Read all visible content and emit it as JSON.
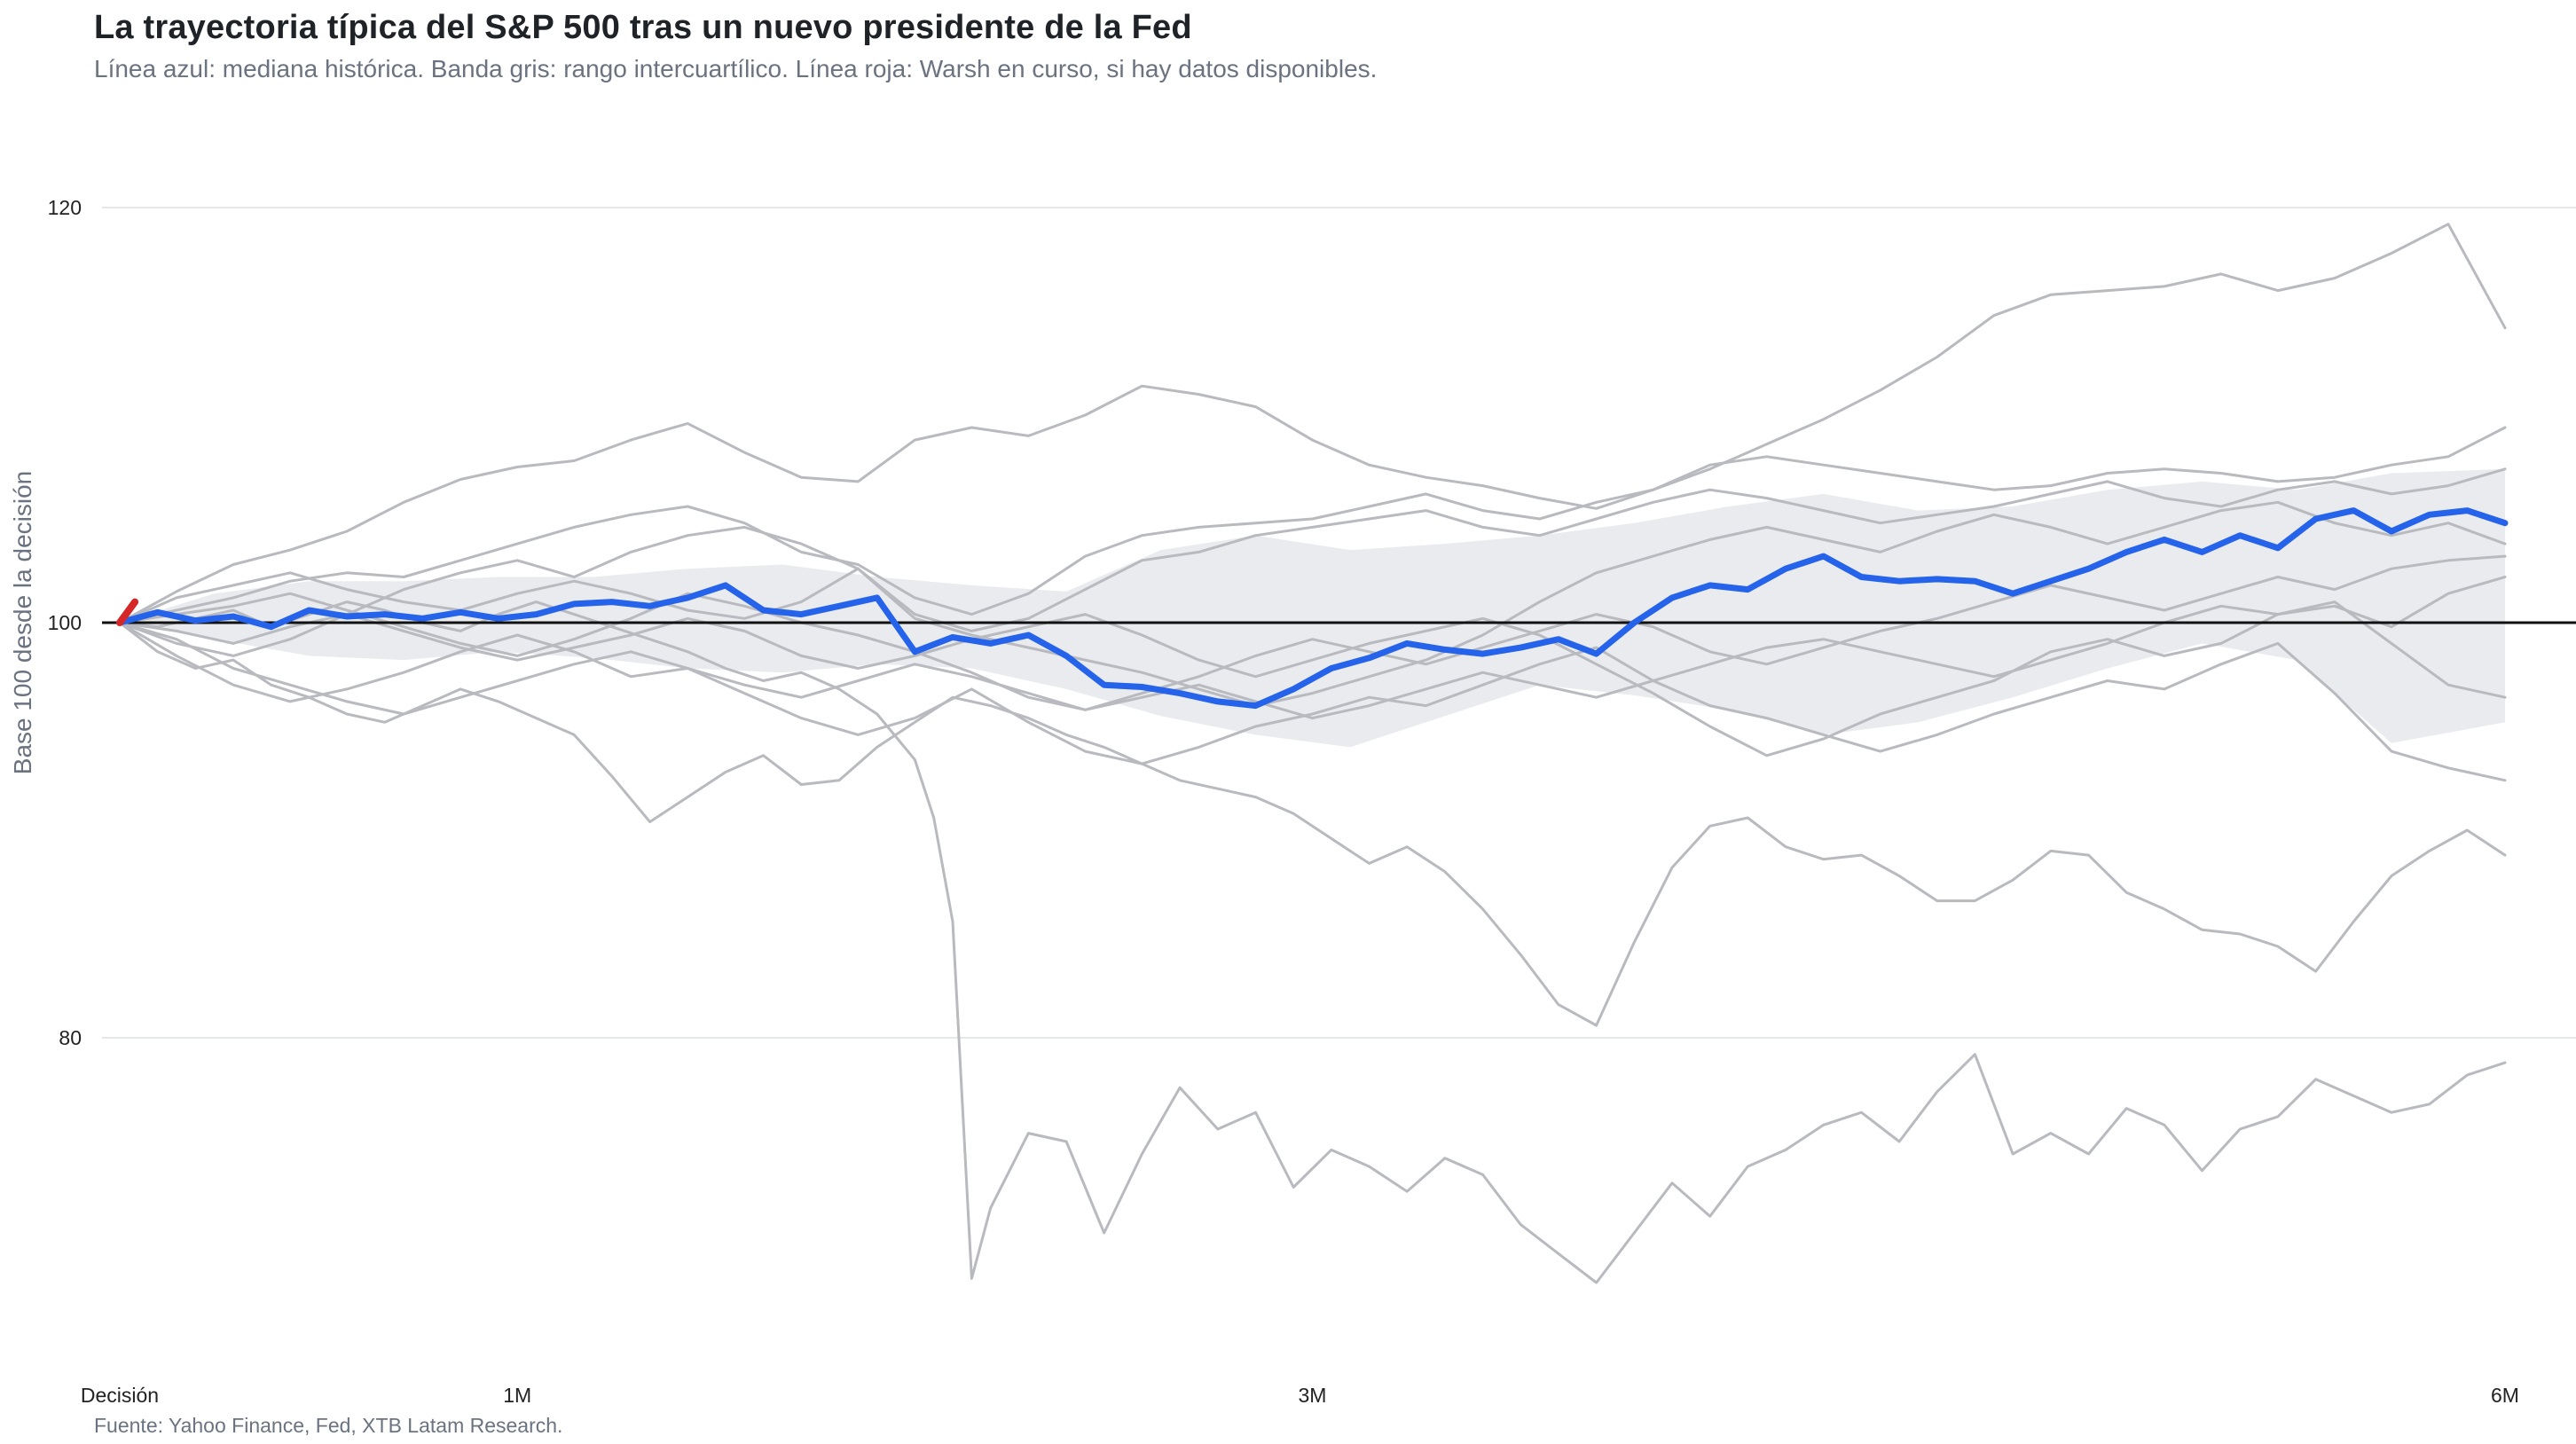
{
  "header": {
    "title": "La trayectoria típica del S&P 500 tras un nuevo presidente de la Fed",
    "subtitle": "Línea azul: mediana histórica. Banda gris: rango intercuartílico. Línea roja: Warsh en curso, si hay datos disponibles."
  },
  "footer": {
    "source": "Fuente: Yahoo Finance, Fed, XTB Latam Research."
  },
  "chart_data": {
    "type": "line",
    "title": "La trayectoria típica del S&P 500 tras un nuevo presidente de la Fed",
    "ylabel": "Base 100 desde la decisión",
    "xlabel": "",
    "xlim": [
      0,
      126
    ],
    "ylim": [
      67,
      122
    ],
    "baseline": 100,
    "grid": true,
    "legend": "none",
    "x_ticks": [
      {
        "value": 0,
        "label": "Decisión"
      },
      {
        "value": 21,
        "label": "1M"
      },
      {
        "value": 63,
        "label": "3M"
      },
      {
        "value": 126,
        "label": "6M"
      }
    ],
    "y_ticks": [
      {
        "value": 80,
        "label": "80"
      },
      {
        "value": 100,
        "label": "100"
      },
      {
        "value": 120,
        "label": "120"
      }
    ],
    "colors": {
      "median": "#2563eb",
      "band": "#e5e7eb",
      "historical": "#b8babf",
      "current": "#d62728",
      "baseline": "#111111",
      "grid": "#e5e7eb"
    },
    "band_iqr": {
      "x": [
        0,
        5,
        10,
        15,
        20,
        25,
        30,
        35,
        40,
        45,
        50,
        55,
        60,
        65,
        70,
        75,
        80,
        85,
        90,
        95,
        100,
        105,
        110,
        115,
        120,
        126
      ],
      "lower": [
        100,
        99.2,
        98.4,
        98.2,
        98.6,
        98.3,
        97.8,
        97.6,
        98.0,
        97.8,
        96.8,
        95.5,
        94.6,
        94.0,
        95.5,
        97.0,
        96.5,
        95.8,
        94.6,
        95.2,
        96.4,
        97.8,
        99.0,
        98.2,
        94.2,
        95.2
      ],
      "upper": [
        100,
        101.4,
        102.0,
        102.0,
        102.2,
        102.2,
        102.6,
        102.8,
        102.2,
        101.8,
        101.5,
        103.5,
        104.2,
        103.5,
        103.8,
        104.2,
        104.8,
        105.6,
        106.2,
        105.4,
        105.6,
        106.4,
        106.8,
        106.4,
        107.2,
        107.4
      ]
    },
    "median": {
      "x": [
        0,
        2,
        4,
        6,
        8,
        10,
        12,
        14,
        16,
        18,
        20,
        22,
        24,
        26,
        28,
        30,
        32,
        34,
        36,
        38,
        40,
        42,
        44,
        46,
        48,
        50,
        52,
        54,
        56,
        58,
        60,
        62,
        64,
        66,
        68,
        70,
        72,
        74,
        76,
        78,
        80,
        82,
        84,
        86,
        88,
        90,
        92,
        94,
        96,
        98,
        100,
        102,
        104,
        106,
        108,
        110,
        112,
        114,
        116,
        118,
        120,
        122,
        124,
        126
      ],
      "y": [
        100,
        100.5,
        100.1,
        100.3,
        99.8,
        100.6,
        100.3,
        100.4,
        100.2,
        100.5,
        100.2,
        100.4,
        100.9,
        101.0,
        100.8,
        101.2,
        101.8,
        100.6,
        100.4,
        100.8,
        101.2,
        98.6,
        99.3,
        99.0,
        99.4,
        98.4,
        97.0,
        96.9,
        96.6,
        96.2,
        96.0,
        96.8,
        97.8,
        98.3,
        99.0,
        98.7,
        98.5,
        98.8,
        99.2,
        98.5,
        100.0,
        101.2,
        101.8,
        101.6,
        102.6,
        103.2,
        102.2,
        102.0,
        102.1,
        102.0,
        101.4,
        102.0,
        102.6,
        103.4,
        104.0,
        103.4,
        104.2,
        103.6,
        105.0,
        105.4,
        104.4,
        105.2,
        105.4,
        104.8
      ]
    },
    "series": [
      {
        "x": [
          0,
          3,
          6,
          9,
          12,
          15,
          18,
          21,
          24,
          27,
          30,
          33,
          36,
          39,
          42,
          45,
          48,
          51,
          54,
          57,
          60,
          63,
          66,
          69,
          72,
          75,
          78,
          81,
          84,
          87,
          90,
          93,
          96,
          99,
          102,
          105,
          108,
          111,
          114,
          117,
          120,
          123,
          126
        ],
        "y": [
          100,
          101.5,
          102.8,
          103.5,
          104.4,
          105.8,
          106.9,
          107.5,
          107.8,
          108.8,
          109.6,
          108.2,
          107.0,
          106.8,
          108.8,
          109.4,
          109.0,
          110.0,
          111.4,
          111.0,
          110.4,
          108.8,
          107.6,
          107.0,
          106.6,
          106.0,
          105.5,
          106.4,
          107.4,
          108.6,
          109.8,
          111.2,
          112.8,
          114.8,
          115.8,
          116.0,
          116.2,
          116.8,
          116.0,
          116.6,
          117.8,
          119.2,
          114.2
        ]
      },
      {
        "x": [
          0,
          3,
          6,
          9,
          12,
          15,
          18,
          21,
          24,
          27,
          30,
          33,
          36,
          39,
          42,
          45,
          48,
          51,
          54,
          57,
          60,
          63,
          66,
          69,
          72,
          75,
          78,
          81,
          84,
          87,
          90,
          93,
          96,
          99,
          102,
          105,
          108,
          111,
          114,
          117,
          120,
          123,
          126
        ],
        "y": [
          100,
          100.6,
          101.2,
          102.0,
          102.4,
          102.2,
          103.0,
          103.8,
          104.6,
          105.2,
          105.6,
          104.8,
          103.4,
          102.8,
          101.2,
          100.4,
          101.4,
          103.2,
          104.2,
          104.6,
          104.8,
          105.0,
          105.6,
          106.2,
          105.4,
          105.0,
          105.8,
          106.4,
          107.6,
          108.0,
          107.6,
          107.2,
          106.8,
          106.4,
          106.6,
          107.2,
          107.4,
          107.2,
          106.8,
          107.0,
          107.6,
          108.0,
          109.4
        ]
      },
      {
        "x": [
          0,
          3,
          6,
          9,
          12,
          15,
          18,
          21,
          24,
          27,
          30,
          33,
          36,
          39,
          42,
          45,
          48,
          51,
          54,
          57,
          60,
          63,
          66,
          69,
          72,
          75,
          78,
          81,
          84,
          87,
          90,
          93,
          96,
          99,
          102,
          105,
          108,
          111,
          114,
          117,
          120,
          123,
          126
        ],
        "y": [
          100,
          99.0,
          98.4,
          99.2,
          100.4,
          101.6,
          102.4,
          103.0,
          102.2,
          103.4,
          104.2,
          104.6,
          103.8,
          102.6,
          100.4,
          99.6,
          100.2,
          101.6,
          103.0,
          103.4,
          104.2,
          104.6,
          105.0,
          105.4,
          104.6,
          104.2,
          105.0,
          105.8,
          106.4,
          106.0,
          105.4,
          104.8,
          105.2,
          105.6,
          106.2,
          106.8,
          106.0,
          105.6,
          106.4,
          106.8,
          106.2,
          106.6,
          107.4
        ]
      },
      {
        "x": [
          0,
          3,
          6,
          9,
          12,
          15,
          18,
          21,
          24,
          27,
          30,
          33,
          36,
          39,
          42,
          45,
          48,
          51,
          54,
          57,
          60,
          63,
          66,
          69,
          72,
          75,
          78,
          81,
          84,
          87,
          90,
          93,
          96,
          99,
          102,
          105,
          108,
          111,
          114,
          117,
          120,
          123,
          126
        ],
        "y": [
          100,
          101.2,
          101.8,
          102.4,
          101.6,
          101.0,
          100.6,
          101.4,
          102.0,
          101.4,
          100.6,
          100.2,
          101.0,
          102.6,
          100.2,
          99.4,
          98.8,
          98.2,
          97.6,
          96.8,
          96.0,
          96.6,
          97.4,
          98.2,
          99.4,
          101.0,
          102.4,
          103.2,
          104.0,
          104.6,
          104.0,
          103.4,
          104.4,
          105.2,
          104.6,
          103.8,
          104.6,
          105.4,
          105.8,
          104.8,
          104.2,
          104.8,
          103.8
        ]
      },
      {
        "x": [
          0,
          3,
          6,
          9,
          12,
          15,
          18,
          21,
          24,
          27,
          30,
          33,
          36,
          39,
          42,
          45,
          48,
          51,
          54,
          57,
          60,
          63,
          66,
          69,
          72,
          75,
          78,
          81,
          84,
          87,
          90,
          93,
          96,
          99,
          102,
          105,
          108,
          111,
          114,
          117,
          120,
          123,
          126
        ],
        "y": [
          100,
          100.4,
          100.8,
          101.4,
          100.6,
          99.8,
          99.0,
          98.4,
          99.2,
          100.2,
          101.4,
          100.8,
          100.0,
          99.4,
          98.6,
          97.6,
          96.4,
          95.8,
          96.6,
          97.4,
          98.4,
          99.2,
          98.6,
          98.0,
          98.8,
          99.6,
          100.4,
          99.8,
          98.6,
          98.0,
          98.8,
          99.6,
          100.2,
          101.0,
          101.8,
          101.2,
          100.6,
          101.4,
          102.2,
          101.6,
          102.6,
          103.0,
          103.2
        ]
      },
      {
        "x": [
          0,
          3,
          6,
          9,
          12,
          15,
          18,
          21,
          24,
          27,
          30,
          33,
          36,
          39,
          42,
          45,
          48,
          51,
          54,
          57,
          60,
          63,
          66,
          69,
          72,
          75,
          78,
          81,
          84,
          87,
          90,
          93,
          96,
          99,
          102,
          105,
          108,
          111,
          114,
          117,
          120,
          123,
          126
        ],
        "y": [
          100,
          99.6,
          99.0,
          99.8,
          100.4,
          99.6,
          98.8,
          98.2,
          98.8,
          99.4,
          100.2,
          99.6,
          98.4,
          97.8,
          98.4,
          99.2,
          99.8,
          100.4,
          99.4,
          98.2,
          97.4,
          98.2,
          99.0,
          99.6,
          100.2,
          99.4,
          98.0,
          96.6,
          95.0,
          93.6,
          94.4,
          95.6,
          96.4,
          97.2,
          98.6,
          99.2,
          98.4,
          99.0,
          100.4,
          100.8,
          99.8,
          101.4,
          102.2
        ]
      },
      {
        "x": [
          0,
          3,
          6,
          9,
          12,
          15,
          18,
          21,
          24,
          27,
          30,
          33,
          36,
          39,
          42,
          45,
          48,
          51,
          54,
          57,
          60,
          63,
          66,
          69,
          72,
          75,
          78,
          81,
          84,
          87,
          90,
          93,
          96,
          99,
          102,
          105,
          108,
          111,
          114,
          117,
          120,
          123,
          126
        ],
        "y": [
          100,
          99.2,
          97.8,
          97.0,
          96.2,
          95.6,
          96.4,
          97.2,
          98.0,
          98.6,
          97.8,
          97.0,
          96.4,
          97.2,
          98.0,
          97.4,
          96.6,
          95.8,
          96.4,
          97.0,
          96.2,
          95.4,
          96.0,
          96.8,
          97.6,
          97.0,
          96.4,
          97.2,
          98.0,
          98.8,
          99.2,
          98.6,
          98.0,
          97.4,
          98.2,
          99.0,
          100.0,
          100.8,
          100.4,
          101.0,
          99.0,
          97.0,
          96.4
        ]
      },
      {
        "x": [
          0,
          3,
          6,
          9,
          12,
          15,
          18,
          21,
          24,
          27,
          30,
          33,
          36,
          39,
          42,
          45,
          48,
          51,
          54,
          57,
          60,
          63,
          66,
          69,
          72,
          75,
          78,
          81,
          84,
          87,
          90,
          93,
          96,
          99,
          102,
          105,
          108,
          111,
          114,
          117,
          120,
          123,
          126
        ],
        "y": [
          100,
          98.4,
          97.0,
          96.2,
          96.8,
          97.6,
          98.6,
          99.4,
          98.6,
          97.4,
          97.8,
          96.6,
          95.4,
          94.6,
          95.4,
          96.8,
          95.2,
          93.8,
          93.2,
          94.0,
          95.0,
          95.6,
          96.4,
          96.0,
          97.0,
          98.0,
          98.8,
          97.2,
          96.0,
          95.4,
          94.6,
          93.8,
          94.6,
          95.6,
          96.4,
          97.2,
          96.8,
          98.0,
          99.0,
          96.6,
          93.8,
          93.0,
          92.4
        ]
      },
      {
        "x": [
          0,
          2,
          4,
          6,
          8,
          10,
          12,
          14,
          16,
          18,
          20,
          22,
          24,
          26,
          28,
          30,
          32,
          34,
          36,
          38,
          40,
          42,
          44,
          46,
          48,
          50,
          52,
          54,
          56,
          58,
          60,
          62,
          64,
          66,
          68,
          70,
          72,
          74,
          76,
          78,
          80,
          82,
          84,
          86,
          88,
          90,
          92,
          94,
          96,
          98,
          100,
          102,
          104,
          106,
          108,
          110,
          112,
          114,
          116,
          118,
          120,
          122,
          124,
          126
        ],
        "y": [
          100,
          98.6,
          97.8,
          98.2,
          97.0,
          96.4,
          95.6,
          95.2,
          96.0,
          96.8,
          96.2,
          95.4,
          94.6,
          92.6,
          90.4,
          91.6,
          92.8,
          93.6,
          92.2,
          92.4,
          94.0,
          95.2,
          96.4,
          96.0,
          95.4,
          94.6,
          94.0,
          93.2,
          92.4,
          92.0,
          91.6,
          90.8,
          89.6,
          88.4,
          89.2,
          88.0,
          86.2,
          84.0,
          81.6,
          80.6,
          84.6,
          88.2,
          90.2,
          90.6,
          89.2,
          88.6,
          88.8,
          87.8,
          86.6,
          86.6,
          87.6,
          89.0,
          88.8,
          87.0,
          86.2,
          85.2,
          85.0,
          84.4,
          83.2,
          85.6,
          87.8,
          89.0,
          90.0,
          88.8
        ]
      },
      {
        "x": [
          0,
          2,
          4,
          6,
          8,
          10,
          12,
          14,
          16,
          18,
          20,
          22,
          24,
          26,
          28,
          30,
          32,
          34,
          36,
          38,
          40,
          42,
          43,
          44,
          45,
          46,
          48,
          50,
          52,
          54,
          56,
          58,
          60,
          62,
          64,
          66,
          68,
          70,
          72,
          74,
          76,
          78,
          80,
          82,
          84,
          86,
          88,
          90,
          92,
          94,
          96,
          98,
          100,
          102,
          104,
          106,
          108,
          110,
          112,
          114,
          116,
          118,
          120,
          122,
          124,
          126
        ],
        "y": [
          100,
          99.8,
          100.2,
          100.6,
          99.8,
          100.4,
          101.0,
          100.6,
          100.0,
          99.6,
          100.4,
          101.0,
          100.4,
          99.8,
          99.2,
          98.6,
          97.8,
          97.2,
          97.6,
          96.8,
          95.6,
          93.4,
          90.6,
          85.6,
          68.4,
          71.8,
          75.4,
          75.0,
          70.6,
          74.4,
          77.6,
          75.6,
          76.4,
          72.8,
          74.6,
          73.8,
          72.6,
          74.2,
          73.4,
          71.0,
          69.6,
          68.2,
          70.6,
          73.0,
          71.4,
          73.8,
          74.6,
          75.8,
          76.4,
          75.0,
          77.4,
          79.2,
          74.4,
          75.4,
          74.4,
          76.6,
          75.8,
          73.6,
          75.6,
          76.2,
          78.0,
          77.2,
          76.4,
          76.8,
          78.2,
          78.8
        ]
      }
    ],
    "current": {
      "x": [
        0,
        0.8
      ],
      "y": [
        100,
        101.0
      ]
    }
  }
}
